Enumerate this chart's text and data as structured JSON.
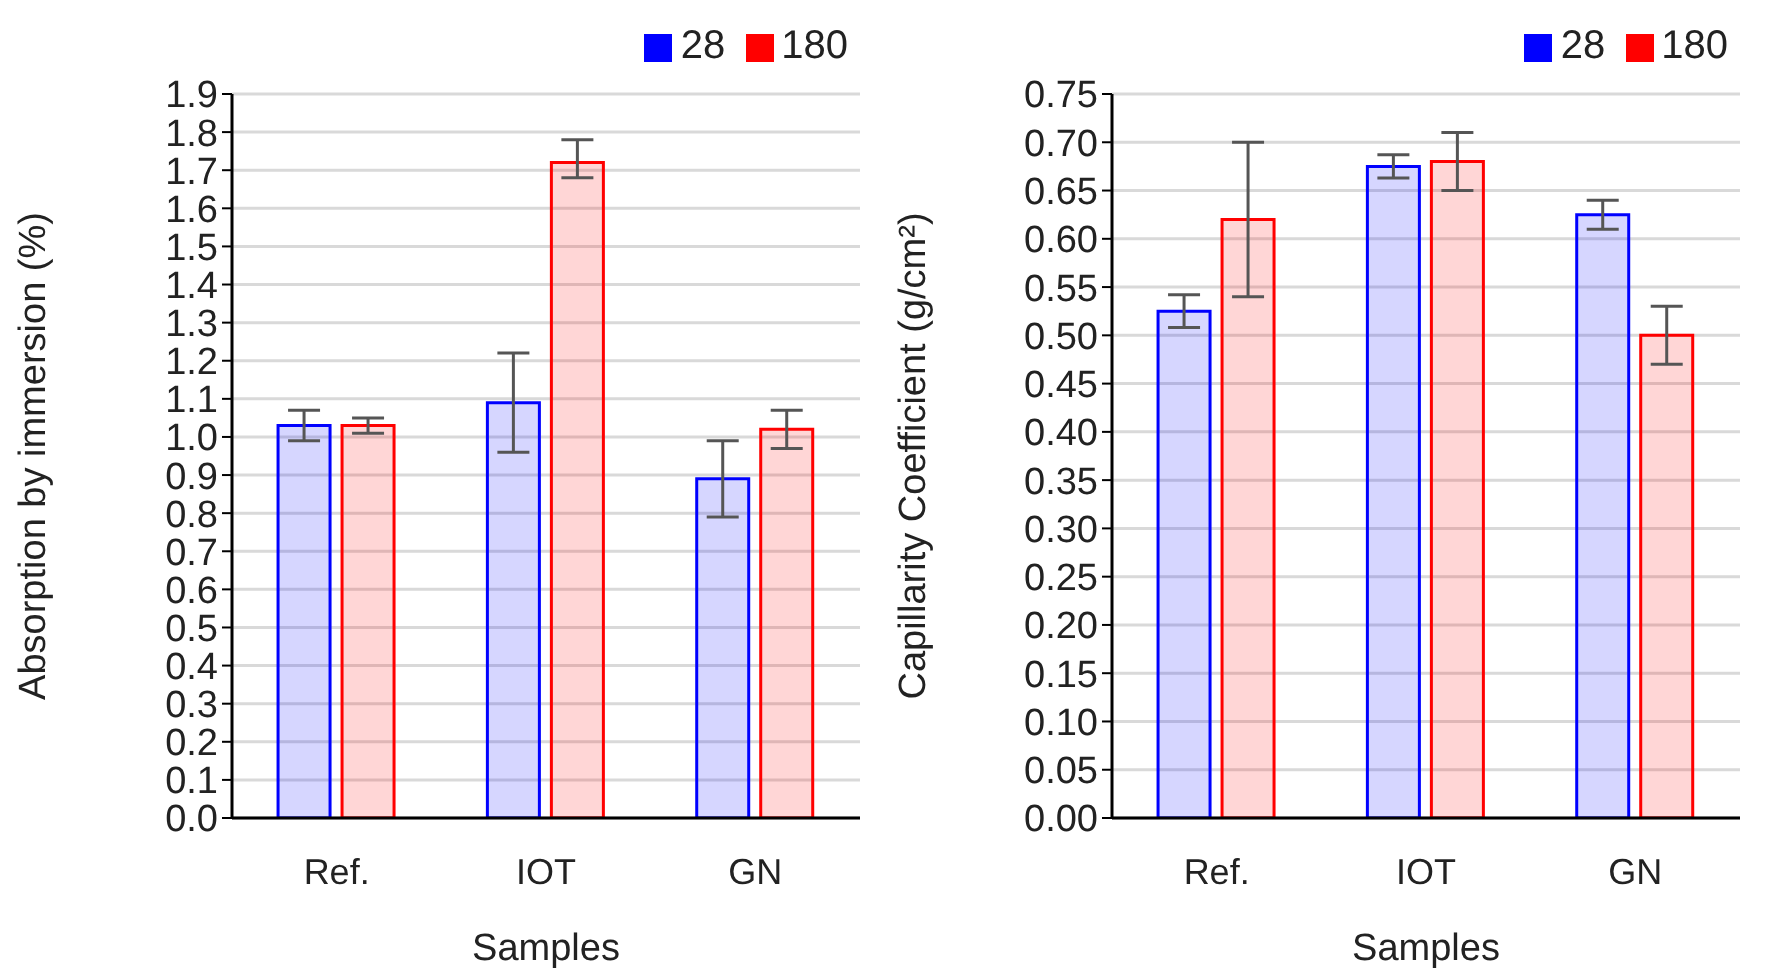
{
  "chart_data": [
    {
      "type": "bar",
      "xlabel": "Samples",
      "ylabel": "Absorption by immersion (%)",
      "categories": [
        "Ref.",
        "IOT",
        "GN"
      ],
      "series": [
        {
          "name": "28",
          "color": "#0000ff",
          "values": [
            1.03,
            1.09,
            0.89
          ],
          "errors": [
            [
              0.99,
              1.07
            ],
            [
              0.96,
              1.22
            ],
            [
              0.79,
              0.99
            ]
          ]
        },
        {
          "name": "180",
          "color": "#ff0000",
          "values": [
            1.03,
            1.72,
            1.02
          ],
          "errors": [
            [
              1.01,
              1.05
            ],
            [
              1.68,
              1.78
            ],
            [
              0.97,
              1.07
            ]
          ]
        }
      ],
      "ylim": [
        0,
        1.9
      ],
      "yticks": [
        {
          "value": 0,
          "label": "0.0"
        },
        0.1,
        0.2,
        0.3,
        0.4,
        0.5,
        0.6,
        0.7,
        0.8,
        0.9,
        {
          "value": 1,
          "label": "1.0"
        },
        1.1,
        1.2,
        1.3,
        1.4,
        1.5,
        1.6,
        1.7,
        1.8,
        1.9
      ],
      "grid": "y",
      "legend": "top right"
    },
    {
      "type": "bar",
      "xlabel": "Samples",
      "ylabel": "Capillarity Coefficient (g/cm²)",
      "categories": [
        "Ref.",
        "IOT",
        "GN"
      ],
      "series": [
        {
          "name": "28",
          "color": "#0000ff",
          "values": [
            0.525,
            0.675,
            0.625
          ],
          "errors": [
            [
              0.508,
              0.542
            ],
            [
              0.663,
              0.687
            ],
            [
              0.61,
              0.64
            ]
          ]
        },
        {
          "name": "180",
          "color": "#ff0000",
          "values": [
            0.62,
            0.68,
            0.5
          ],
          "errors": [
            [
              0.54,
              0.7
            ],
            [
              0.65,
              0.71
            ],
            [
              0.47,
              0.53
            ]
          ]
        }
      ],
      "ylim": [
        0,
        0.75
      ],
      "yticks": [
        {
          "value": 0,
          "label": "0.00"
        },
        0.05,
        {
          "value": 0.1,
          "label": "0.10"
        },
        0.15,
        {
          "value": 0.2,
          "label": "0.20"
        },
        0.25,
        {
          "value": 0.3,
          "label": "0.30"
        },
        0.35,
        {
          "value": 0.4,
          "label": "0.40"
        },
        0.45,
        {
          "value": 0.5,
          "label": "0.50"
        },
        0.55,
        {
          "value": 0.6,
          "label": "0.60"
        },
        0.65,
        {
          "value": 0.7,
          "label": "0.70"
        },
        0.75
      ],
      "grid": "y",
      "legend": "top right"
    }
  ]
}
